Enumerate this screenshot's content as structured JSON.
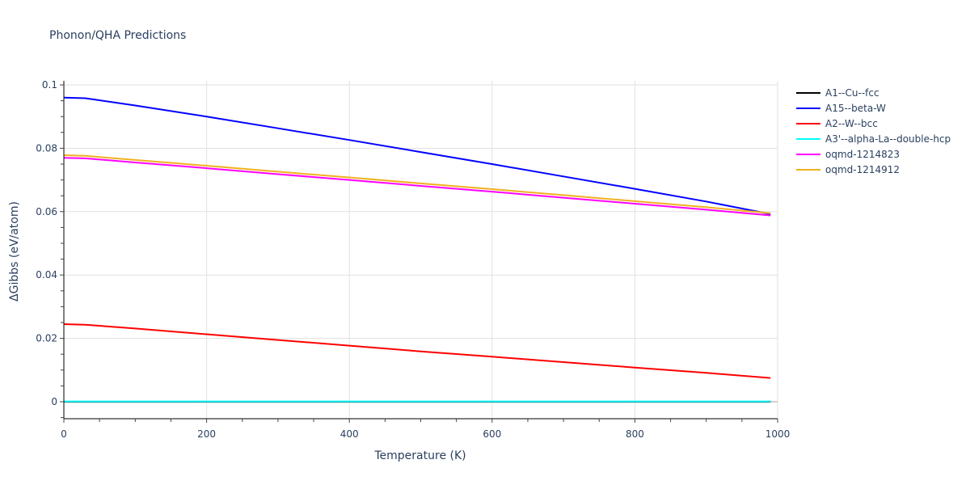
{
  "title": "Phonon/QHA Predictions",
  "chart_data": {
    "type": "line",
    "title": "Phonon/QHA Predictions",
    "xlabel": "Temperature (K)",
    "ylabel": "ΔGibbs (eV/atom)",
    "xlim": [
      0,
      1000
    ],
    "ylim": [
      -0.0055,
      0.101
    ],
    "xticks": [
      0,
      200,
      400,
      600,
      800,
      1000
    ],
    "xtick_labels": [
      "0",
      "200",
      "400",
      "600",
      "800",
      "1000"
    ],
    "yticks": [
      0,
      0.02,
      0.04,
      0.06,
      0.08,
      0.1
    ],
    "ytick_labels": [
      "0",
      "0.02",
      "0.04",
      "0.06",
      "0.08",
      "0.1"
    ],
    "grid": true,
    "legend_position": "right",
    "x": [
      0,
      30,
      100,
      200,
      300,
      400,
      500,
      600,
      700,
      800,
      900,
      990
    ],
    "series": [
      {
        "name": "A1--Cu--fcc",
        "color": "#000000",
        "values": [
          0,
          0,
          0,
          0,
          0,
          0,
          0,
          0,
          0,
          0,
          0,
          0
        ]
      },
      {
        "name": "A15--beta-W",
        "color": "#0000ff",
        "values": [
          0.096,
          0.0958,
          0.0935,
          0.09,
          0.0863,
          0.0826,
          0.0788,
          0.075,
          0.0711,
          0.0672,
          0.0632,
          0.0592
        ]
      },
      {
        "name": "A2--W--bcc",
        "color": "#ff0000",
        "values": [
          0.0245,
          0.0243,
          0.0231,
          0.0213,
          0.0195,
          0.0177,
          0.0159,
          0.0142,
          0.0125,
          0.0108,
          0.0091,
          0.0075
        ]
      },
      {
        "name": "A3'--alpha-La--double-hcp",
        "color": "#00ffff",
        "values": [
          0.0001,
          0.0001,
          0.0001,
          0.0001,
          0.0001,
          0.0001,
          0.0001,
          0.0001,
          0.0001,
          0.0001,
          0.0001,
          0.0001
        ]
      },
      {
        "name": "oqmd-1214823",
        "color": "#ff00ff",
        "values": [
          0.077,
          0.0768,
          0.0755,
          0.0737,
          0.0718,
          0.07,
          0.0681,
          0.0663,
          0.0644,
          0.0625,
          0.0606,
          0.0588
        ]
      },
      {
        "name": "oqmd-1214912",
        "color": "#f0b020",
        "values": [
          0.0778,
          0.0776,
          0.0763,
          0.0745,
          0.0726,
          0.0708,
          0.0689,
          0.0671,
          0.0652,
          0.0633,
          0.0614,
          0.0595
        ]
      }
    ]
  }
}
